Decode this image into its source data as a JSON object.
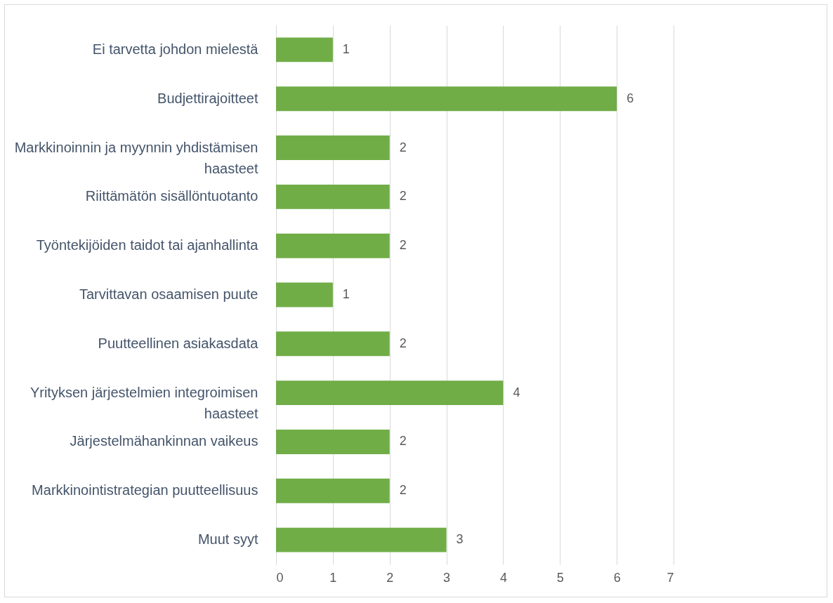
{
  "chart_data": {
    "type": "bar",
    "orientation": "horizontal",
    "categories": [
      "Ei tarvetta johdon mielestä",
      "Budjettirajoitteet",
      "Markkinoinnin ja myynnin yhdistämisen haasteet",
      "Riittämätön sisällöntuotanto",
      "Työntekijöiden taidot tai ajanhallinta",
      "Tarvittavan osaamisen puute",
      "Puutteellinen asiakasdata",
      "Yrityksen järjestelmien integroimisen haasteet",
      "Järjestelmähankinnan vaikeus",
      "Markkinointistrategian puutteellisuus",
      "Muut syyt"
    ],
    "values": [
      1,
      6,
      2,
      2,
      2,
      1,
      2,
      4,
      2,
      2,
      3
    ],
    "color": "#70ad47",
    "xlim": [
      0,
      7
    ],
    "xticks": [
      0,
      1,
      2,
      3,
      4,
      5,
      6,
      7
    ],
    "grid": "x",
    "data_labels": true
  }
}
